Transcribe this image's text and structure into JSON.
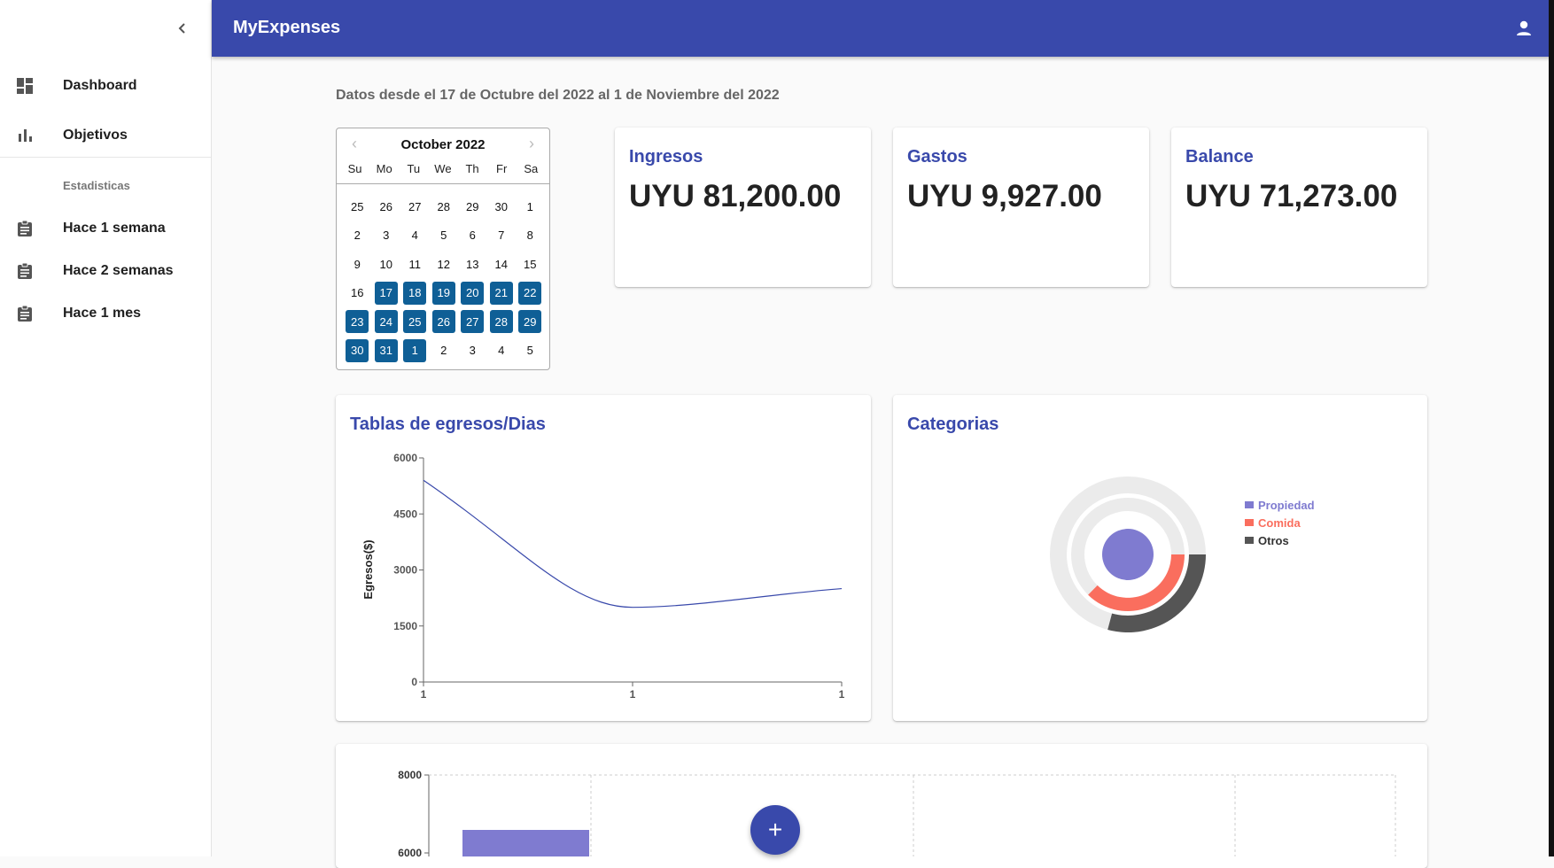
{
  "sidebar": {
    "collapse_icon": "chevron-left-icon",
    "items": [
      {
        "label": "Dashboard",
        "icon": "dashboard-icon"
      },
      {
        "label": "Objetivos",
        "icon": "bar-chart-icon"
      }
    ],
    "section_label": "Estadisticas",
    "stats_items": [
      {
        "label": "Hace 1 semana",
        "icon": "assignment-icon"
      },
      {
        "label": "Hace 2 semanas",
        "icon": "assignment-icon"
      },
      {
        "label": "Hace 1 mes",
        "icon": "assignment-icon"
      }
    ]
  },
  "appbar": {
    "title": "MyExpenses",
    "user_icon": "person-icon",
    "color": "#3949ab"
  },
  "range_text": "Datos desde el 17 de Octubre del 2022 al 1 de Noviembre del 2022",
  "calendar": {
    "month_label": "October 2022",
    "prev_icon": "chevron-left-icon",
    "next_icon": "chevron-right-icon",
    "weekdays": [
      "Su",
      "Mo",
      "Tu",
      "We",
      "Th",
      "Fr",
      "Sa"
    ],
    "weeks": [
      [
        "25",
        "26",
        "27",
        "28",
        "29",
        "30",
        "1"
      ],
      [
        "2",
        "3",
        "4",
        "5",
        "6",
        "7",
        "8"
      ],
      [
        "9",
        "10",
        "11",
        "12",
        "13",
        "14",
        "15"
      ],
      [
        "16",
        "17",
        "18",
        "19",
        "20",
        "21",
        "22"
      ],
      [
        "23",
        "24",
        "25",
        "26",
        "27",
        "28",
        "29"
      ],
      [
        "30",
        "31",
        "1",
        "2",
        "3",
        "4",
        "5"
      ]
    ],
    "selected_range": "17 October 2022 – 1 November 2022",
    "selected_color": "#0f5f96"
  },
  "summary": {
    "ingresos": {
      "title": "Ingresos",
      "value": "UYU 81,200.00"
    },
    "gastos": {
      "title": "Gastos",
      "value": "UYU 9,927.00"
    },
    "balance": {
      "title": "Balance",
      "value": "UYU 71,273.00"
    }
  },
  "line_card": {
    "title": "Tablas de egresos/Dias"
  },
  "cat_card": {
    "title": "Categorias"
  },
  "fab": {
    "label": "+"
  },
  "chart_data": [
    {
      "type": "line",
      "title": "Tablas de egresos/Dias",
      "ylabel": "Egresos($)",
      "xlabel": "",
      "ylim": [
        0,
        6000
      ],
      "yticks": [
        "0",
        "1500",
        "3000",
        "4500",
        "6000"
      ],
      "x": [
        "1",
        "1",
        "1"
      ],
      "series": [
        {
          "values": [
            5400,
            2000,
            2500
          ]
        }
      ],
      "color": "#3949ab",
      "grid": false
    },
    {
      "type": "pie",
      "title": "Categorias",
      "legend": "right",
      "slices": [
        {
          "label": "Propiedad",
          "color": "#7f7bd0"
        },
        {
          "label": "Comida",
          "color": "#fa6e5e"
        },
        {
          "label": "Otros",
          "color": "#555555"
        }
      ]
    },
    {
      "type": "bar",
      "yticks": [
        "8000",
        "6000"
      ],
      "ylim": [
        0,
        8000
      ],
      "grid": true,
      "partially_visible": true,
      "color": "#7f7bd0"
    }
  ]
}
